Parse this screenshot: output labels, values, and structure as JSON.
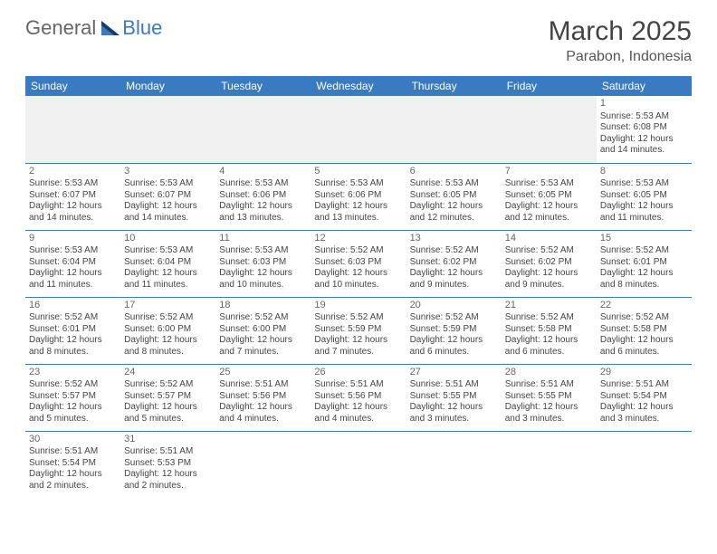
{
  "logo": {
    "part1": "General",
    "part2": "Blue"
  },
  "title": "March 2025",
  "location": "Parabon, Indonesia",
  "colors": {
    "header_bg": "#3a7ac0",
    "header_text": "#ffffff",
    "border": "#3a7ac0",
    "text": "#444444"
  },
  "typography": {
    "title_size": 30,
    "location_size": 16,
    "daynum_size": 11,
    "body_size": 10
  },
  "days_of_week": [
    "Sunday",
    "Monday",
    "Tuesday",
    "Wednesday",
    "Thursday",
    "Friday",
    "Saturday"
  ],
  "weeks": [
    [
      null,
      null,
      null,
      null,
      null,
      null,
      {
        "n": "1",
        "sr": "Sunrise: 5:53 AM",
        "ss": "Sunset: 6:08 PM",
        "d1": "Daylight: 12 hours",
        "d2": "and 14 minutes."
      }
    ],
    [
      {
        "n": "2",
        "sr": "Sunrise: 5:53 AM",
        "ss": "Sunset: 6:07 PM",
        "d1": "Daylight: 12 hours",
        "d2": "and 14 minutes."
      },
      {
        "n": "3",
        "sr": "Sunrise: 5:53 AM",
        "ss": "Sunset: 6:07 PM",
        "d1": "Daylight: 12 hours",
        "d2": "and 14 minutes."
      },
      {
        "n": "4",
        "sr": "Sunrise: 5:53 AM",
        "ss": "Sunset: 6:06 PM",
        "d1": "Daylight: 12 hours",
        "d2": "and 13 minutes."
      },
      {
        "n": "5",
        "sr": "Sunrise: 5:53 AM",
        "ss": "Sunset: 6:06 PM",
        "d1": "Daylight: 12 hours",
        "d2": "and 13 minutes."
      },
      {
        "n": "6",
        "sr": "Sunrise: 5:53 AM",
        "ss": "Sunset: 6:05 PM",
        "d1": "Daylight: 12 hours",
        "d2": "and 12 minutes."
      },
      {
        "n": "7",
        "sr": "Sunrise: 5:53 AM",
        "ss": "Sunset: 6:05 PM",
        "d1": "Daylight: 12 hours",
        "d2": "and 12 minutes."
      },
      {
        "n": "8",
        "sr": "Sunrise: 5:53 AM",
        "ss": "Sunset: 6:05 PM",
        "d1": "Daylight: 12 hours",
        "d2": "and 11 minutes."
      }
    ],
    [
      {
        "n": "9",
        "sr": "Sunrise: 5:53 AM",
        "ss": "Sunset: 6:04 PM",
        "d1": "Daylight: 12 hours",
        "d2": "and 11 minutes."
      },
      {
        "n": "10",
        "sr": "Sunrise: 5:53 AM",
        "ss": "Sunset: 6:04 PM",
        "d1": "Daylight: 12 hours",
        "d2": "and 11 minutes."
      },
      {
        "n": "11",
        "sr": "Sunrise: 5:53 AM",
        "ss": "Sunset: 6:03 PM",
        "d1": "Daylight: 12 hours",
        "d2": "and 10 minutes."
      },
      {
        "n": "12",
        "sr": "Sunrise: 5:52 AM",
        "ss": "Sunset: 6:03 PM",
        "d1": "Daylight: 12 hours",
        "d2": "and 10 minutes."
      },
      {
        "n": "13",
        "sr": "Sunrise: 5:52 AM",
        "ss": "Sunset: 6:02 PM",
        "d1": "Daylight: 12 hours",
        "d2": "and 9 minutes."
      },
      {
        "n": "14",
        "sr": "Sunrise: 5:52 AM",
        "ss": "Sunset: 6:02 PM",
        "d1": "Daylight: 12 hours",
        "d2": "and 9 minutes."
      },
      {
        "n": "15",
        "sr": "Sunrise: 5:52 AM",
        "ss": "Sunset: 6:01 PM",
        "d1": "Daylight: 12 hours",
        "d2": "and 8 minutes."
      }
    ],
    [
      {
        "n": "16",
        "sr": "Sunrise: 5:52 AM",
        "ss": "Sunset: 6:01 PM",
        "d1": "Daylight: 12 hours",
        "d2": "and 8 minutes."
      },
      {
        "n": "17",
        "sr": "Sunrise: 5:52 AM",
        "ss": "Sunset: 6:00 PM",
        "d1": "Daylight: 12 hours",
        "d2": "and 8 minutes."
      },
      {
        "n": "18",
        "sr": "Sunrise: 5:52 AM",
        "ss": "Sunset: 6:00 PM",
        "d1": "Daylight: 12 hours",
        "d2": "and 7 minutes."
      },
      {
        "n": "19",
        "sr": "Sunrise: 5:52 AM",
        "ss": "Sunset: 5:59 PM",
        "d1": "Daylight: 12 hours",
        "d2": "and 7 minutes."
      },
      {
        "n": "20",
        "sr": "Sunrise: 5:52 AM",
        "ss": "Sunset: 5:59 PM",
        "d1": "Daylight: 12 hours",
        "d2": "and 6 minutes."
      },
      {
        "n": "21",
        "sr": "Sunrise: 5:52 AM",
        "ss": "Sunset: 5:58 PM",
        "d1": "Daylight: 12 hours",
        "d2": "and 6 minutes."
      },
      {
        "n": "22",
        "sr": "Sunrise: 5:52 AM",
        "ss": "Sunset: 5:58 PM",
        "d1": "Daylight: 12 hours",
        "d2": "and 6 minutes."
      }
    ],
    [
      {
        "n": "23",
        "sr": "Sunrise: 5:52 AM",
        "ss": "Sunset: 5:57 PM",
        "d1": "Daylight: 12 hours",
        "d2": "and 5 minutes."
      },
      {
        "n": "24",
        "sr": "Sunrise: 5:52 AM",
        "ss": "Sunset: 5:57 PM",
        "d1": "Daylight: 12 hours",
        "d2": "and 5 minutes."
      },
      {
        "n": "25",
        "sr": "Sunrise: 5:51 AM",
        "ss": "Sunset: 5:56 PM",
        "d1": "Daylight: 12 hours",
        "d2": "and 4 minutes."
      },
      {
        "n": "26",
        "sr": "Sunrise: 5:51 AM",
        "ss": "Sunset: 5:56 PM",
        "d1": "Daylight: 12 hours",
        "d2": "and 4 minutes."
      },
      {
        "n": "27",
        "sr": "Sunrise: 5:51 AM",
        "ss": "Sunset: 5:55 PM",
        "d1": "Daylight: 12 hours",
        "d2": "and 3 minutes."
      },
      {
        "n": "28",
        "sr": "Sunrise: 5:51 AM",
        "ss": "Sunset: 5:55 PM",
        "d1": "Daylight: 12 hours",
        "d2": "and 3 minutes."
      },
      {
        "n": "29",
        "sr": "Sunrise: 5:51 AM",
        "ss": "Sunset: 5:54 PM",
        "d1": "Daylight: 12 hours",
        "d2": "and 3 minutes."
      }
    ],
    [
      {
        "n": "30",
        "sr": "Sunrise: 5:51 AM",
        "ss": "Sunset: 5:54 PM",
        "d1": "Daylight: 12 hours",
        "d2": "and 2 minutes."
      },
      {
        "n": "31",
        "sr": "Sunrise: 5:51 AM",
        "ss": "Sunset: 5:53 PM",
        "d1": "Daylight: 12 hours",
        "d2": "and 2 minutes."
      },
      null,
      null,
      null,
      null,
      null
    ]
  ]
}
